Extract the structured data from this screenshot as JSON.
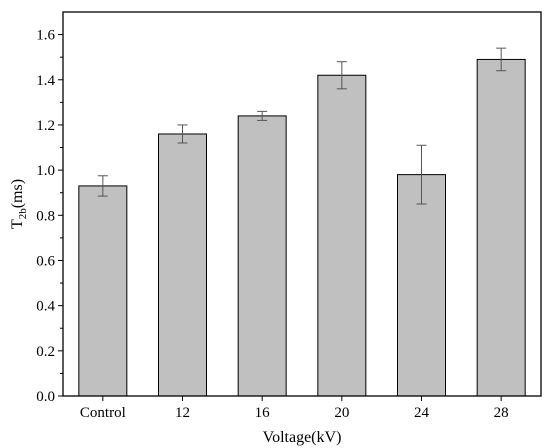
{
  "chart_data": {
    "type": "bar",
    "categories": [
      "Control",
      "12",
      "16",
      "20",
      "24",
      "28"
    ],
    "values": [
      0.93,
      1.16,
      1.24,
      1.42,
      0.98,
      1.49
    ],
    "errors": [
      0.045,
      0.04,
      0.02,
      0.06,
      0.13,
      0.05
    ],
    "ylabel_main": "T",
    "ylabel_sub": "2b",
    "ylabel_unit": "(ms)",
    "xlabel": "Voltage(kV)",
    "ylim": [
      0.0,
      1.7
    ],
    "yticks": [
      "0.0",
      "0.2",
      "0.4",
      "0.6",
      "0.8",
      "1.0",
      "1.2",
      "1.4",
      "1.6"
    ],
    "bar_color": "#c0c0c0",
    "grid": false
  }
}
